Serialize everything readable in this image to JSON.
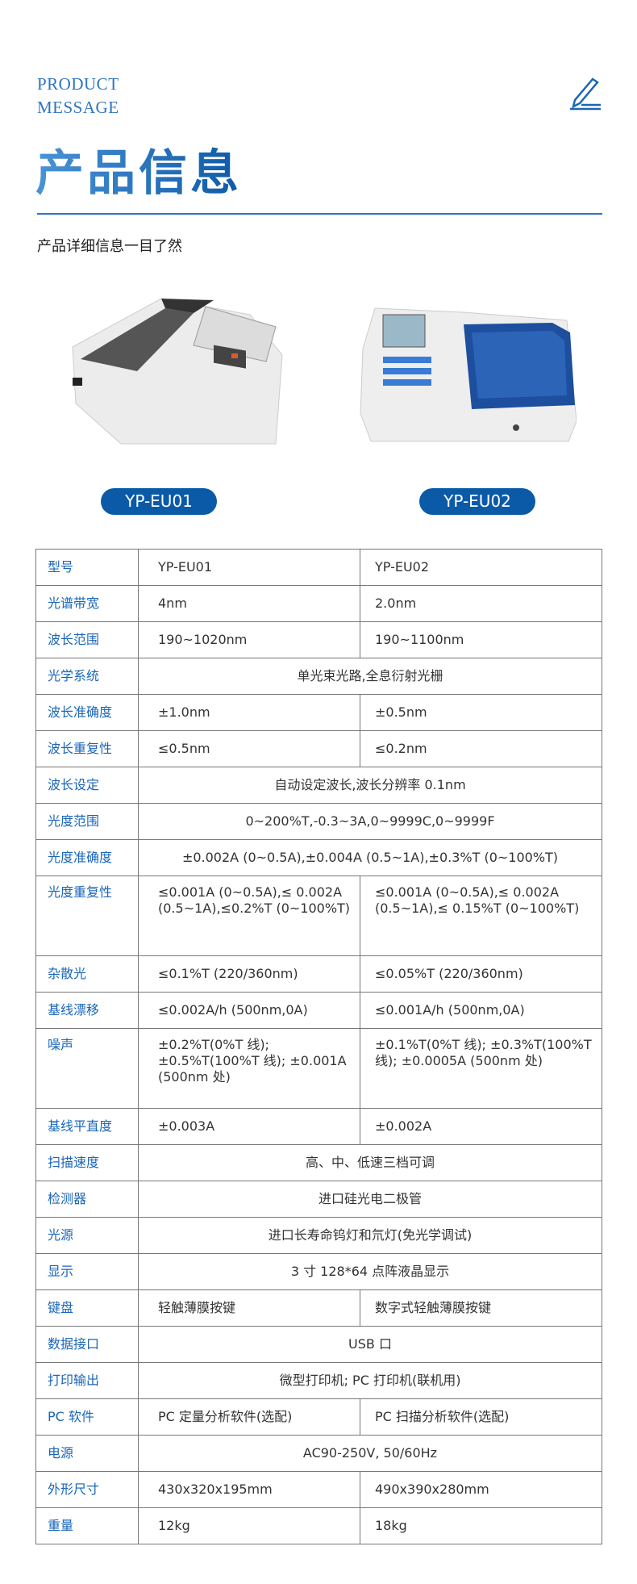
{
  "header": {
    "en_line1": "PRODUCT",
    "en_line2": "MESSAGE",
    "title": "产品信息",
    "subtitle": "产品详细信息一目了然",
    "icon": "pencil-icon",
    "accent": "#2f74c0"
  },
  "products": [
    {
      "model": "YP-EU01"
    },
    {
      "model": "YP-EU02"
    }
  ],
  "specs": [
    {
      "label": "型号",
      "a": "YP-EU01",
      "b": "YP-EU02"
    },
    {
      "label": "光谱带宽",
      "a": "4nm",
      "b": "2.0nm"
    },
    {
      "label": "波长范围",
      "a": "190~1020nm",
      "b": "190~1100nm"
    },
    {
      "label": "光学系统",
      "all": "单光束光路,全息衍射光栅"
    },
    {
      "label": "波长准确度",
      "a": "±1.0nm",
      "b": "±0.5nm"
    },
    {
      "label": "波长重复性",
      "a": "≤0.5nm",
      "b": "≤0.2nm"
    },
    {
      "label": "波长设定",
      "all": "自动设定波长,波长分辨率 0.1nm"
    },
    {
      "label": "光度范围",
      "all": "0~200%T,-0.3~3A,0~9999C,0~9999F"
    },
    {
      "label": "光度准确度",
      "all": "±0.002A (0~0.5A),±0.004A (0.5~1A),±0.3%T (0~100%T)"
    },
    {
      "label": "光度重复性",
      "a": "≤0.001A (0~0.5A),≤ 0.002A (0.5~1A),≤0.2%T (0~100%T)",
      "b": "≤0.001A (0~0.5A),≤ 0.002A (0.5~1A),≤ 0.15%T (0~100%T)"
    },
    {
      "label": "杂散光",
      "a": "≤0.1%T (220/360nm)",
      "b": "≤0.05%T (220/360nm)"
    },
    {
      "label": "基线漂移",
      "a": "≤0.002A/h (500nm,0A)",
      "b": "≤0.001A/h (500nm,0A)"
    },
    {
      "label": "噪声",
      "a": "±0.2%T(0%T 线); ±0.5%T(100%T 线); ±0.001A (500nm 处)",
      "b": "±0.1%T(0%T 线); ±0.3%T(100%T 线); ±0.0005A (500nm 处)"
    },
    {
      "label": "基线平直度",
      "a": "±0.003A",
      "b": "±0.002A"
    },
    {
      "label": "扫描速度",
      "all": "高、中、低速三档可调"
    },
    {
      "label": "检测器",
      "all": "进口硅光电二极管"
    },
    {
      "label": "光源",
      "all": "进口长寿命钨灯和氘灯(免光学调试)"
    },
    {
      "label": "显示",
      "all": "3 寸 128*64 点阵液晶显示"
    },
    {
      "label": "键盘",
      "a": "轻触薄膜按键",
      "b": "数字式轻触薄膜按键"
    },
    {
      "label": "数据接口",
      "all": "USB 口"
    },
    {
      "label": "打印输出",
      "all": "微型打印机; PC 打印机(联机用)"
    },
    {
      "label": "PC 软件",
      "a": "PC 定量分析软件(选配)",
      "b": "PC 扫描分析软件(选配)"
    },
    {
      "label": "电源",
      "all": "AC90-250V, 50/60Hz"
    },
    {
      "label": "外形尺寸",
      "a": "430x320x195mm",
      "b": "490x390x280mm"
    },
    {
      "label": "重量",
      "a": "12kg",
      "b": "18kg"
    }
  ]
}
